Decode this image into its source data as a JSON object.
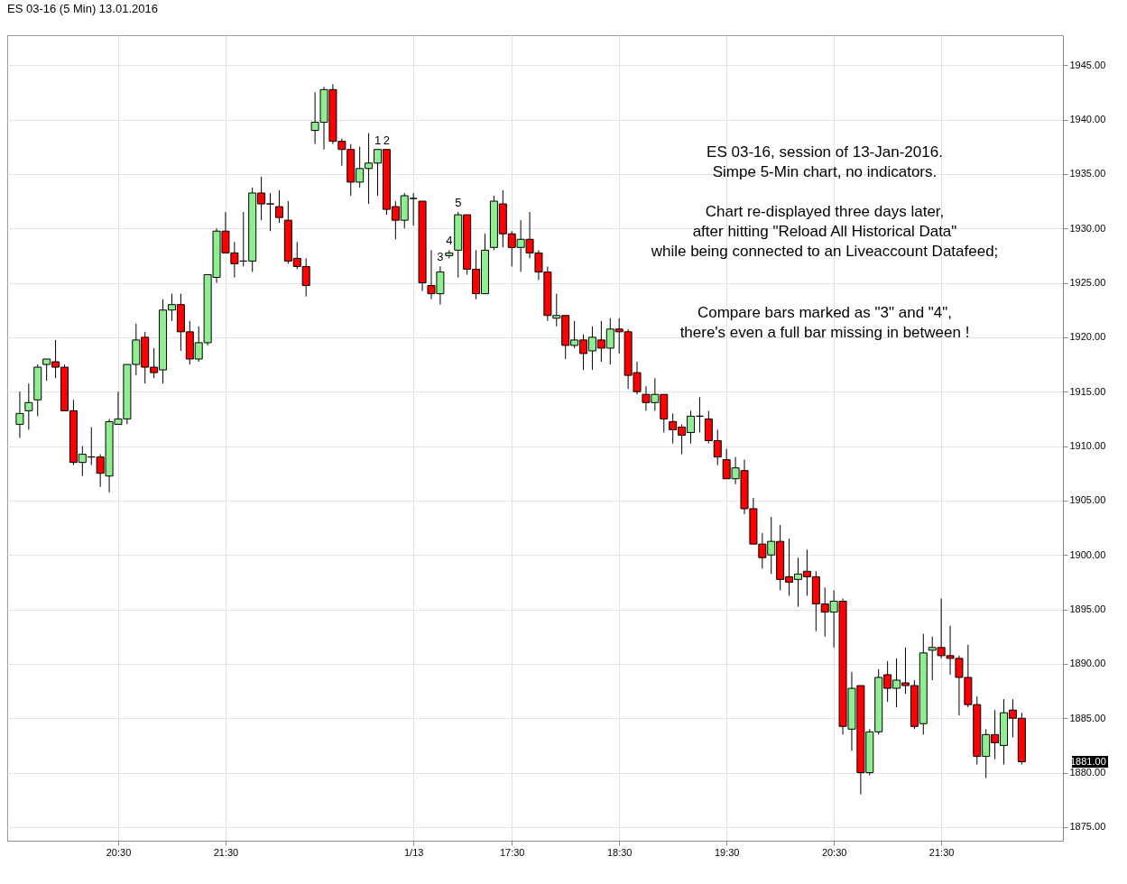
{
  "chart_data": {
    "type": "candlestick",
    "title": "ES 03-16 (5 Min) 13.01.2016",
    "categories": [
      null,
      null,
      null,
      null,
      null,
      null,
      null,
      null,
      null,
      null,
      null,
      "20:30",
      null,
      null,
      null,
      null,
      null,
      null,
      null,
      null,
      null,
      null,
      null,
      "21:30",
      null,
      null,
      null,
      null,
      null,
      null,
      null,
      null,
      null,
      null,
      null,
      null,
      null,
      null,
      null,
      null,
      null,
      null,
      null,
      null,
      "1/13",
      null,
      null,
      null,
      null,
      null,
      null,
      null,
      null,
      null,
      null,
      "17:30",
      null,
      null,
      null,
      null,
      null,
      null,
      null,
      null,
      null,
      null,
      null,
      "18:30",
      null,
      null,
      null,
      null,
      null,
      null,
      null,
      null,
      null,
      null,
      null,
      "19:30",
      null,
      null,
      null,
      null,
      null,
      null,
      null,
      null,
      null,
      null,
      null,
      "20:30",
      null,
      null,
      null,
      null,
      null,
      null,
      null,
      null,
      null,
      null,
      null,
      "21:30",
      null,
      null,
      null,
      null,
      null,
      null,
      null,
      null,
      null
    ],
    "ohlc": [
      [
        1912,
        1915,
        1910.75,
        1913
      ],
      [
        1913.25,
        1915.75,
        1911.5,
        1914
      ],
      [
        1914.25,
        1917.5,
        1912.75,
        1917.25
      ],
      [
        1917.5,
        1918,
        1916,
        1918
      ],
      [
        1917.75,
        1919.75,
        1916.25,
        1917.25
      ],
      [
        1917.25,
        1917.5,
        1913.25,
        1913.25
      ],
      [
        1913.25,
        1914.25,
        1908.25,
        1908.5
      ],
      [
        1908.5,
        1910,
        1907.25,
        1909.25
      ],
      [
        1909,
        1911.75,
        1908.25,
        1909
      ],
      [
        1909,
        1909.25,
        1906.25,
        1907.5
      ],
      [
        1907.25,
        1912.5,
        1905.75,
        1912.25
      ],
      [
        1912,
        1915,
        1912,
        1912.5
      ],
      [
        1912.5,
        1917.5,
        1912,
        1917.5
      ],
      [
        1917.5,
        1921.25,
        1916.5,
        1919.75
      ],
      [
        1920,
        1920.5,
        1915.75,
        1917.25
      ],
      [
        1917.25,
        1919,
        1916.25,
        1916.75
      ],
      [
        1917,
        1923.5,
        1915.75,
        1922.5
      ],
      [
        1922.5,
        1924,
        1921.5,
        1923
      ],
      [
        1923,
        1924,
        1918.75,
        1920.5
      ],
      [
        1920.5,
        1921.5,
        1917.5,
        1918
      ],
      [
        1918,
        1921,
        1917.75,
        1919.5
      ],
      [
        1919.5,
        1925.75,
        1919.25,
        1925.75
      ],
      [
        1925.5,
        1930,
        1925,
        1929.75
      ],
      [
        1929.75,
        1931.5,
        1927.75,
        1927.75
      ],
      [
        1927.75,
        1928.75,
        1925.5,
        1926.75
      ],
      [
        1927,
        1931.5,
        1926.5,
        1927
      ],
      [
        1927,
        1933.75,
        1926,
        1933.25
      ],
      [
        1933.25,
        1934.75,
        1930.75,
        1932.25
      ],
      [
        1932.25,
        1933.25,
        1929.75,
        1932.25
      ],
      [
        1932,
        1933.5,
        1930.5,
        1931
      ],
      [
        1930.75,
        1932.5,
        1926.75,
        1927
      ],
      [
        1927.25,
        1928.75,
        1926.25,
        1926.5
      ],
      [
        1926.5,
        1927.25,
        1923.75,
        1924.75
      ],
      [
        1939,
        1942.5,
        1937.75,
        1939.75
      ],
      [
        1939.75,
        1943,
        1937.25,
        1942.75
      ],
      [
        1942.75,
        1943.25,
        1937.75,
        1938
      ],
      [
        1938,
        1938.25,
        1935.75,
        1937.25
      ],
      [
        1937.25,
        1937.75,
        1933,
        1934.25
      ],
      [
        1934.25,
        1937.5,
        1933.75,
        1935.5
      ],
      [
        1935.5,
        1938.75,
        1932.25,
        1936
      ],
      [
        1936,
        1937.25,
        1933,
        1937.25
      ],
      [
        1937.25,
        1937.25,
        1931.25,
        1931.75
      ],
      [
        1932,
        1932.5,
        1929,
        1930.75
      ],
      [
        1930.75,
        1933.25,
        1930,
        1933
      ],
      [
        1932.75,
        1933.25,
        1930.25,
        1932.75
      ],
      [
        1932.5,
        1932.5,
        1924.25,
        1925
      ],
      [
        1924.75,
        1928,
        1923.5,
        1924
      ],
      [
        1924,
        1926.5,
        1923,
        1926
      ],
      [
        1927.5,
        1928,
        1927.25,
        1927.75
      ],
      [
        1928,
        1931.5,
        1925.5,
        1931.25
      ],
      [
        1931.25,
        1931.25,
        1925.75,
        1926.25
      ],
      [
        1926.25,
        1928,
        1923.5,
        1924
      ],
      [
        1924,
        1929.5,
        1924,
        1928
      ],
      [
        1928.25,
        1933,
        1928,
        1932.5
      ],
      [
        1932.25,
        1933.5,
        1928.25,
        1929.5
      ],
      [
        1929.5,
        1929.75,
        1926.5,
        1928.25
      ],
      [
        1928.25,
        1930.75,
        1926,
        1929
      ],
      [
        1929,
        1931.5,
        1927.25,
        1927.75
      ],
      [
        1927.75,
        1928,
        1925.25,
        1926
      ],
      [
        1926,
        1926.5,
        1921.5,
        1922
      ],
      [
        1921.75,
        1924,
        1921,
        1922
      ],
      [
        1922,
        1922,
        1918,
        1919.25
      ],
      [
        1919.25,
        1921.5,
        1919,
        1919.75
      ],
      [
        1919.75,
        1920.25,
        1917,
        1918.5
      ],
      [
        1918.75,
        1921,
        1917,
        1920
      ],
      [
        1919.75,
        1921.5,
        1917.75,
        1919
      ],
      [
        1919,
        1921.75,
        1917.5,
        1920.75
      ],
      [
        1920.75,
        1921.75,
        1918.5,
        1920.5
      ],
      [
        1920.5,
        1920.75,
        1915.25,
        1916.5
      ],
      [
        1916.75,
        1917.75,
        1914.75,
        1915
      ],
      [
        1914.75,
        1915.5,
        1913.25,
        1914
      ],
      [
        1914,
        1916.25,
        1913.25,
        1914.75
      ],
      [
        1914.75,
        1914.75,
        1911.25,
        1912.5
      ],
      [
        1912.25,
        1913,
        1910.25,
        1911.5
      ],
      [
        1911.75,
        1912,
        1909.25,
        1911
      ],
      [
        1911.25,
        1913.25,
        1910.25,
        1912.75
      ],
      [
        1912.75,
        1914.5,
        1911.25,
        1912.75
      ],
      [
        1912.5,
        1913.25,
        1910.25,
        1910.5
      ],
      [
        1910.5,
        1911.5,
        1908.25,
        1909
      ],
      [
        1908.75,
        1909.75,
        1907,
        1907
      ],
      [
        1907,
        1909,
        1906.5,
        1908
      ],
      [
        1907.75,
        1908.75,
        1903.75,
        1904.25
      ],
      [
        1904.25,
        1905.25,
        1901,
        1901
      ],
      [
        1901,
        1902,
        1898.75,
        1899.75
      ],
      [
        1900,
        1903.5,
        1898.25,
        1901.25
      ],
      [
        1901.25,
        1902.75,
        1896.75,
        1897.75
      ],
      [
        1898,
        1901.5,
        1896.25,
        1897.5
      ],
      [
        1897.75,
        1899.75,
        1895.25,
        1898.25
      ],
      [
        1898.5,
        1900.5,
        1896.25,
        1898
      ],
      [
        1898,
        1898.5,
        1893,
        1895.5
      ],
      [
        1895.5,
        1897,
        1892.5,
        1894.75
      ],
      [
        1894.75,
        1896.75,
        1891.5,
        1895.75
      ],
      [
        1895.75,
        1896,
        1883.5,
        1884.25
      ],
      [
        1884,
        1889.25,
        1882,
        1887.75
      ],
      [
        1888,
        1888,
        1878,
        1880
      ],
      [
        1880,
        1884,
        1879.75,
        1883.75
      ],
      [
        1883.75,
        1889.5,
        1883.5,
        1888.75
      ],
      [
        1889,
        1890.25,
        1886.5,
        1887.75
      ],
      [
        1887.75,
        1890.5,
        1886,
        1888.5
      ],
      [
        1888.25,
        1891.5,
        1887.25,
        1888
      ],
      [
        1888,
        1888.5,
        1884,
        1884.25
      ],
      [
        1884.5,
        1892.75,
        1883.5,
        1891
      ],
      [
        1891.25,
        1892.5,
        1888.5,
        1891.5
      ],
      [
        1891.5,
        1896,
        1890.5,
        1890.75
      ],
      [
        1890.75,
        1893.5,
        1889,
        1890.5
      ],
      [
        1890.5,
        1890.75,
        1885.25,
        1888.75
      ],
      [
        1888.75,
        1891.75,
        1886,
        1886.25
      ],
      [
        1886.25,
        1887,
        1880.75,
        1881.5
      ],
      [
        1881.5,
        1884,
        1879.5,
        1883.5
      ],
      [
        1883.5,
        1885.75,
        1881.25,
        1882.75
      ],
      [
        1882.5,
        1886.75,
        1880.75,
        1885.5
      ],
      [
        1885.75,
        1886.75,
        1883.25,
        1885
      ],
      [
        1885,
        1885.5,
        1880.75,
        1881
      ]
    ],
    "colors": [
      "#90ee90",
      "#90ee90",
      "#90ee90",
      "#90ee90",
      "#ff0000",
      "#ff0000",
      "#ff0000",
      "#90ee90",
      "#000000",
      "#ff0000",
      "#90ee90",
      "#90ee90",
      "#90ee90",
      "#90ee90",
      "#ff0000",
      "#ff0000",
      "#90ee90",
      "#90ee90",
      "#ff0000",
      "#ff0000",
      "#90ee90",
      "#90ee90",
      "#90ee90",
      "#ff0000",
      "#ff0000",
      "#000000",
      "#90ee90",
      "#ff0000",
      "#000000",
      "#ff0000",
      "#ff0000",
      "#ff0000",
      "#ff0000",
      "#90ee90",
      "#90ee90",
      "#ff0000",
      "#ff0000",
      "#ff0000",
      "#90ee90",
      "#90ee90",
      "#90ee90",
      "#ff0000",
      "#ff0000",
      "#90ee90",
      "#000000",
      "#ff0000",
      "#ff0000",
      "#90ee90",
      "#90ee90",
      "#90ee90",
      "#ff0000",
      "#ff0000",
      "#90ee90",
      "#90ee90",
      "#ff0000",
      "#ff0000",
      "#90ee90",
      "#ff0000",
      "#ff0000",
      "#ff0000",
      "#90ee90",
      "#ff0000",
      "#90ee90",
      "#ff0000",
      "#90ee90",
      "#ff0000",
      "#90ee90",
      "#ff0000",
      "#ff0000",
      "#ff0000",
      "#ff0000",
      "#90ee90",
      "#ff0000",
      "#ff0000",
      "#ff0000",
      "#90ee90",
      "#000000",
      "#ff0000",
      "#ff0000",
      "#ff0000",
      "#90ee90",
      "#ff0000",
      "#ff0000",
      "#ff0000",
      "#90ee90",
      "#ff0000",
      "#ff0000",
      "#90ee90",
      "#ff0000",
      "#ff0000",
      "#ff0000",
      "#90ee90",
      "#ff0000",
      "#90ee90",
      "#ff0000",
      "#90ee90",
      "#90ee90",
      "#ff0000",
      "#90ee90",
      "#ff0000",
      "#ff0000",
      "#90ee90",
      "#90ee90",
      "#ff0000",
      "#ff0000",
      "#ff0000",
      "#ff0000",
      "#ff0000",
      "#90ee90",
      "#ff0000",
      "#90ee90",
      "#ff0000",
      "#ff0000"
    ],
    "value_labels": [
      null,
      null,
      null,
      null,
      null,
      null,
      null,
      null,
      null,
      null,
      null,
      null,
      null,
      null,
      null,
      null,
      null,
      null,
      null,
      null,
      null,
      null,
      null,
      null,
      null,
      null,
      null,
      null,
      null,
      null,
      null,
      null,
      null,
      null,
      null,
      null,
      null,
      null,
      null,
      null,
      "1",
      "2",
      null,
      null,
      null,
      null,
      null,
      "3",
      "4",
      "5",
      null,
      null,
      null,
      null,
      null,
      null,
      null,
      null,
      null,
      null,
      null,
      null,
      null,
      null,
      null,
      null,
      null,
      null,
      null,
      null,
      null,
      null,
      null,
      null,
      null,
      null,
      null,
      null,
      null,
      null,
      null,
      null,
      null,
      null,
      null,
      null,
      null,
      null,
      null,
      null,
      null,
      null,
      null,
      null,
      null,
      null,
      null,
      null,
      null,
      null,
      null,
      null,
      null,
      null,
      null,
      null,
      null,
      null,
      null,
      null,
      null,
      null,
      null
    ],
    "ylim": [
      1873.75,
      1947.75
    ],
    "yticks": [
      {
        "value": 1875,
        "label": "1875.00"
      },
      {
        "value": 1880,
        "label": "1880.00"
      },
      {
        "value": 1885,
        "label": "1885.00"
      },
      {
        "value": 1890,
        "label": "1890.00"
      },
      {
        "value": 1895,
        "label": "1895.00"
      },
      {
        "value": 1900,
        "label": "1900.00"
      },
      {
        "value": 1905,
        "label": "1905.00"
      },
      {
        "value": 1910,
        "label": "1910.00"
      },
      {
        "value": 1915,
        "label": "1915.00"
      },
      {
        "value": 1920,
        "label": "1920.00"
      },
      {
        "value": 1925,
        "label": "1925.00"
      },
      {
        "value": 1930,
        "label": "1930.00"
      },
      {
        "value": 1935,
        "label": "1935.00"
      },
      {
        "value": 1940,
        "label": "1940.00"
      },
      {
        "value": 1945,
        "label": "1945.00"
      }
    ],
    "grid": true,
    "annotations": [
      "ES 03-16, session of 13-Jan-2016.\nSimpe 5-Min chart, no indicators.",
      "Chart re-displayed three days later,\nafter hitting \"Reload All Historical Data\"\nwhile being connected to an Liveaccount Datafeed;",
      "Compare bars marked as \"3\" and \"4\",\nthere's even a full bar missing in between !",
      "1881.00"
    ]
  }
}
